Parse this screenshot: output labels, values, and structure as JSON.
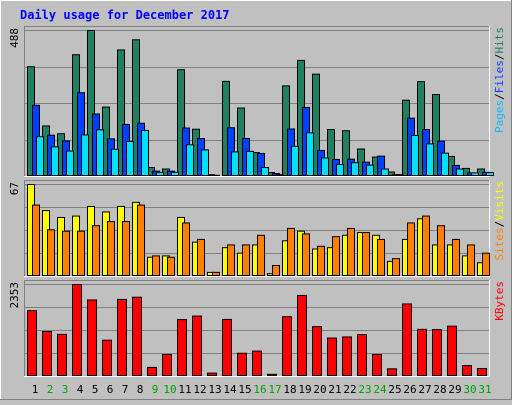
{
  "chart_data": {
    "type": "bar",
    "title": "Daily usage for December 2017",
    "categories": [
      "1",
      "2",
      "3",
      "4",
      "5",
      "6",
      "7",
      "8",
      "9",
      "10",
      "11",
      "12",
      "13",
      "14",
      "15",
      "16",
      "17",
      "18",
      "19",
      "20",
      "21",
      "22",
      "23",
      "24",
      "25",
      "26",
      "27",
      "28",
      "29",
      "30",
      "31"
    ],
    "weekend_days": [
      "2",
      "3",
      "9",
      "10",
      "16",
      "17",
      "23",
      "24",
      "30",
      "31"
    ],
    "panels": [
      {
        "id": "top",
        "ymax": 488,
        "ymax_label": "488",
        "legend": [
          "Pages",
          "Files",
          "Hits"
        ],
        "series": [
          {
            "name": "Hits",
            "color": "#208060",
            "values": [
              367,
              169,
              143,
              407,
              488,
              232,
              423,
              457,
              30,
              25,
              357,
              158,
              6,
              318,
              229,
              80,
              13,
              303,
              388,
              342,
              157,
              153,
              92,
              65,
              15,
              255,
              317,
              274,
              67,
              27,
              25
            ]
          },
          {
            "name": "Files",
            "color": "#0040ff",
            "values": [
              238,
              138,
              119,
              280,
              209,
              126,
              174,
              178,
              18,
              18,
              162,
              127,
              4,
              163,
              127,
              77,
              10,
              159,
              231,
              87,
              57,
              58,
              48,
              68,
              6,
              195,
              157,
              118,
              37,
              12,
              14
            ]
          },
          {
            "name": "Pages",
            "color": "#00e0ff",
            "values": [
              133,
              99,
              85,
              139,
              156,
              91,
              117,
              154,
              14,
              14,
              106,
              89,
              3,
              82,
              84,
              30,
              6,
              101,
              146,
              62,
              40,
              46,
              38,
              25,
              6,
              137,
              109,
              78,
              25,
              12,
              13
            ]
          }
        ]
      },
      {
        "id": "middle",
        "ymax": 67,
        "ymax_label": "67",
        "legend": [
          "Sites",
          "/",
          "Visits"
        ],
        "series": [
          {
            "name": "Visits",
            "color": "#ffff00",
            "values": [
              67,
              48,
              43,
              44,
              51,
              47,
              51,
              54,
              14,
              15,
              43,
              25,
              3,
              21,
              17,
              23,
              2,
              26,
              33,
              20,
              21,
              30,
              32,
              30,
              11,
              27,
              42,
              23,
              23,
              15,
              10
            ]
          },
          {
            "name": "Sites",
            "color": "#ff8000",
            "values": [
              52,
              34,
              33,
              33,
              37,
              40,
              40,
              52,
              15,
              14,
              39,
              27,
              3,
              23,
              23,
              30,
              8,
              35,
              31,
              22,
              29,
              35,
              32,
              27,
              13,
              39,
              44,
              37,
              27,
              23,
              17
            ]
          }
        ]
      },
      {
        "id": "bottom",
        "ymax": 2353,
        "ymax_label": "2353",
        "legend": [
          "KBytes"
        ],
        "series": [
          {
            "name": "KBytes",
            "color": "#ff0000",
            "values": [
              1683,
              1151,
              1079,
              2353,
              1958,
              928,
              1972,
              2028,
              232,
              562,
              1455,
              1546,
              86,
              1459,
              595,
              650,
              56,
              1529,
              2073,
              1275,
              984,
              1011,
              1071,
              562,
              196,
              1856,
              1206,
              1200,
              1287,
              279,
              205
            ]
          }
        ]
      }
    ]
  },
  "colors": {
    "background": "#c0c0c0",
    "panel_fill": "#c0c0c0",
    "gridline": "#808080",
    "title": "#0000ff",
    "weekday_label": "#000000",
    "weekend_label": "#00a000"
  }
}
